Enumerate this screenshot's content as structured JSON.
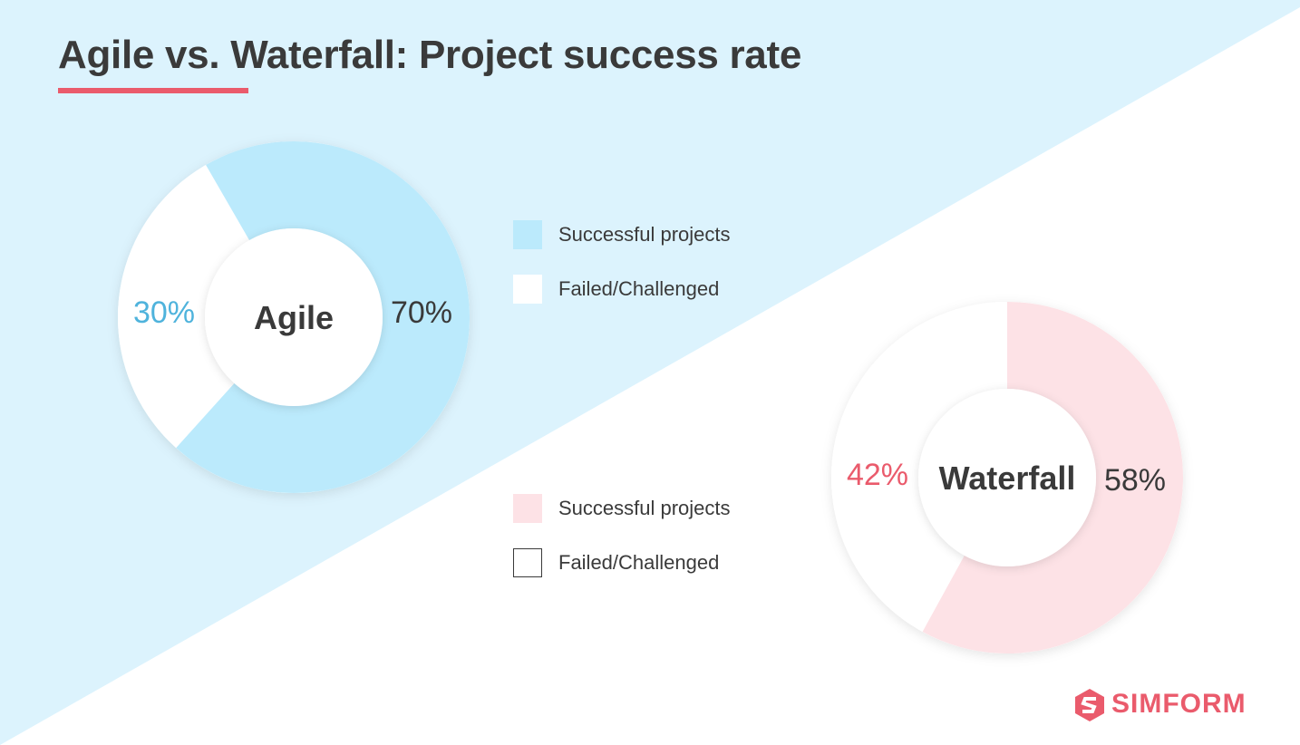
{
  "page": {
    "title": "Agile vs. Waterfall: Project success rate",
    "colors": {
      "bg_top": "#dcf3fd",
      "bg_bottom": "#ffffff",
      "accent": "#ea5b6c",
      "text": "#3a3a3a"
    }
  },
  "chart_data": [
    {
      "type": "pie",
      "center_label": "Agile",
      "slices": [
        {
          "label": "Successful projects",
          "value": 70,
          "display": "70%",
          "color": "#bbeafc",
          "label_color": "#3a3a3a"
        },
        {
          "label": "Failed/Challenged",
          "value": 30,
          "display": "30%",
          "color": "#ffffff",
          "label_color": "#4fb3dc"
        }
      ],
      "legend": [
        {
          "label": "Successful projects",
          "color": "#bbeafc",
          "border": "none"
        },
        {
          "label": "Failed/Challenged",
          "color": "#ffffff",
          "border": "none"
        }
      ]
    },
    {
      "type": "pie",
      "center_label": "Waterfall",
      "slices": [
        {
          "label": "Successful projects",
          "value": 58,
          "display": "58%",
          "color": "#fde2e6",
          "label_color": "#3a3a3a"
        },
        {
          "label": "Failed/Challenged",
          "value": 42,
          "display": "42%",
          "color": "#ffffff",
          "label_color": "#ea5b6c"
        }
      ],
      "legend": [
        {
          "label": "Successful projects",
          "color": "#fde2e6",
          "border": "none"
        },
        {
          "label": "Failed/Challenged",
          "color": "#ffffff",
          "border": "#3a3a3a"
        }
      ]
    }
  ],
  "logo": {
    "text": "SIMFORM",
    "icon": "simform-logo-icon",
    "color": "#ea5b6c"
  }
}
